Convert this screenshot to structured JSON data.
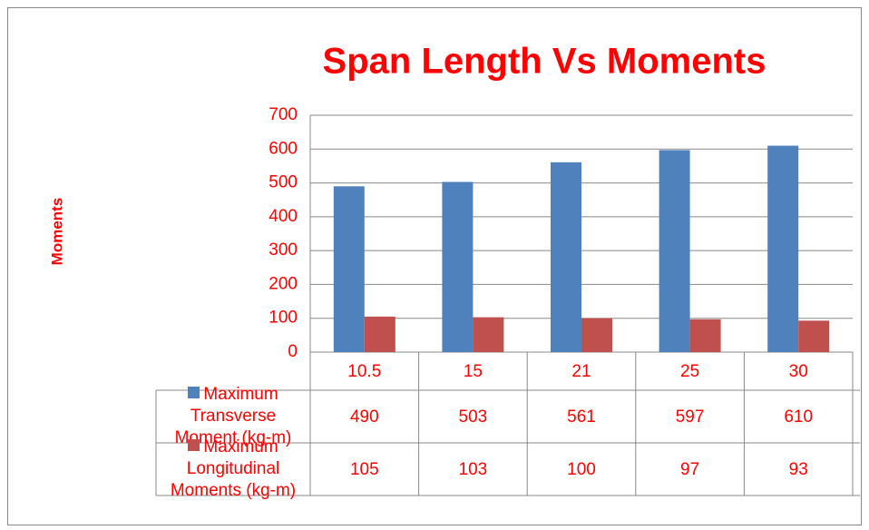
{
  "chart_data": {
    "type": "bar",
    "title": "Span Length Vs Moments",
    "y_label": "Moments",
    "categories": [
      "10.5",
      "15",
      "21",
      "25",
      "30"
    ],
    "series": [
      {
        "name": "Maximum Transverse Moment (kg-m)",
        "color": "#4f81bd",
        "values": [
          490,
          503,
          561,
          597,
          610
        ]
      },
      {
        "name": "Maximum Longitudinal Moments (kg-m)",
        "color": "#c0504d",
        "values": [
          105,
          103,
          100,
          97,
          93
        ]
      }
    ],
    "ylim": [
      0,
      700
    ],
    "yticks": [
      0,
      100,
      200,
      300,
      400,
      500,
      600,
      700
    ],
    "grid": true,
    "data_table": true
  }
}
